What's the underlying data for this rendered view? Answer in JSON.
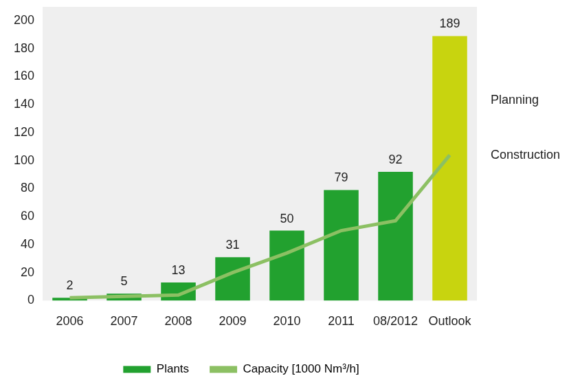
{
  "chart_data": {
    "type": "bar",
    "categories": [
      "2006",
      "2007",
      "2008",
      "2009",
      "2010",
      "2011",
      "08/2012",
      "Outlook"
    ],
    "series": [
      {
        "name": "Plants",
        "type": "bar",
        "color": "#22a12f",
        "colors": [
          "#22a12f",
          "#22a12f",
          "#22a12f",
          "#22a12f",
          "#22a12f",
          "#22a12f",
          "#22a12f",
          "#c8d40f"
        ],
        "values": [
          2,
          5,
          13,
          31,
          50,
          79,
          92,
          189
        ],
        "data_labels": true
      },
      {
        "name": "Capacity [1000 Nm³/h]",
        "type": "line",
        "color": "#8cc063",
        "marker": "none",
        "line_style": "solid",
        "values": [
          2,
          3,
          4,
          20,
          34,
          50,
          57,
          104
        ]
      }
    ],
    "annotations": [
      {
        "text": "Planning",
        "y": 143
      },
      {
        "text": "Construction",
        "y": 104
      }
    ],
    "ylim": [
      0,
      200
    ],
    "yticks": [
      0,
      20,
      40,
      60,
      80,
      100,
      120,
      140,
      160,
      180,
      200
    ],
    "grid": false,
    "legend": "bottom"
  }
}
